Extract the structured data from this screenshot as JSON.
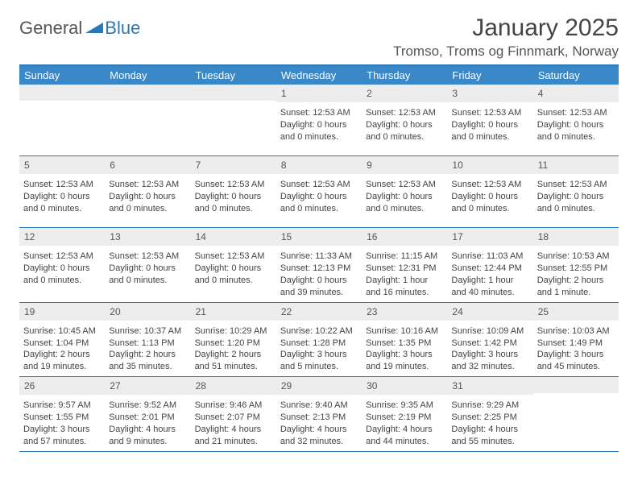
{
  "logo": {
    "general": "General",
    "blue": "Blue"
  },
  "title": "January 2025",
  "location": "Tromso, Troms og Finnmark, Norway",
  "colors": {
    "header_bg": "#3a88c8",
    "border": "#2a78b8",
    "daynum_bg": "#ededed",
    "text": "#444444"
  },
  "weekdays": [
    "Sunday",
    "Monday",
    "Tuesday",
    "Wednesday",
    "Thursday",
    "Friday",
    "Saturday"
  ],
  "weeks": [
    [
      {
        "n": "",
        "lines": []
      },
      {
        "n": "",
        "lines": []
      },
      {
        "n": "",
        "lines": []
      },
      {
        "n": "1",
        "lines": [
          "Sunset: 12:53 AM",
          "Daylight: 0 hours and 0 minutes."
        ]
      },
      {
        "n": "2",
        "lines": [
          "Sunset: 12:53 AM",
          "Daylight: 0 hours and 0 minutes."
        ]
      },
      {
        "n": "3",
        "lines": [
          "Sunset: 12:53 AM",
          "Daylight: 0 hours and 0 minutes."
        ]
      },
      {
        "n": "4",
        "lines": [
          "Sunset: 12:53 AM",
          "Daylight: 0 hours and 0 minutes."
        ]
      }
    ],
    [
      {
        "n": "5",
        "lines": [
          "Sunset: 12:53 AM",
          "Daylight: 0 hours and 0 minutes."
        ]
      },
      {
        "n": "6",
        "lines": [
          "Sunset: 12:53 AM",
          "Daylight: 0 hours and 0 minutes."
        ]
      },
      {
        "n": "7",
        "lines": [
          "Sunset: 12:53 AM",
          "Daylight: 0 hours and 0 minutes."
        ]
      },
      {
        "n": "8",
        "lines": [
          "Sunset: 12:53 AM",
          "Daylight: 0 hours and 0 minutes."
        ]
      },
      {
        "n": "9",
        "lines": [
          "Sunset: 12:53 AM",
          "Daylight: 0 hours and 0 minutes."
        ]
      },
      {
        "n": "10",
        "lines": [
          "Sunset: 12:53 AM",
          "Daylight: 0 hours and 0 minutes."
        ]
      },
      {
        "n": "11",
        "lines": [
          "Sunset: 12:53 AM",
          "Daylight: 0 hours and 0 minutes."
        ]
      }
    ],
    [
      {
        "n": "12",
        "lines": [
          "Sunset: 12:53 AM",
          "Daylight: 0 hours and 0 minutes."
        ]
      },
      {
        "n": "13",
        "lines": [
          "Sunset: 12:53 AM",
          "Daylight: 0 hours and 0 minutes."
        ]
      },
      {
        "n": "14",
        "lines": [
          "Sunset: 12:53 AM",
          "Daylight: 0 hours and 0 minutes."
        ]
      },
      {
        "n": "15",
        "lines": [
          "Sunrise: 11:33 AM",
          "Sunset: 12:13 PM",
          "Daylight: 0 hours and 39 minutes."
        ]
      },
      {
        "n": "16",
        "lines": [
          "Sunrise: 11:15 AM",
          "Sunset: 12:31 PM",
          "Daylight: 1 hour and 16 minutes."
        ]
      },
      {
        "n": "17",
        "lines": [
          "Sunrise: 11:03 AM",
          "Sunset: 12:44 PM",
          "Daylight: 1 hour and 40 minutes."
        ]
      },
      {
        "n": "18",
        "lines": [
          "Sunrise: 10:53 AM",
          "Sunset: 12:55 PM",
          "Daylight: 2 hours and 1 minute."
        ]
      }
    ],
    [
      {
        "n": "19",
        "lines": [
          "Sunrise: 10:45 AM",
          "Sunset: 1:04 PM",
          "Daylight: 2 hours and 19 minutes."
        ]
      },
      {
        "n": "20",
        "lines": [
          "Sunrise: 10:37 AM",
          "Sunset: 1:13 PM",
          "Daylight: 2 hours and 35 minutes."
        ]
      },
      {
        "n": "21",
        "lines": [
          "Sunrise: 10:29 AM",
          "Sunset: 1:20 PM",
          "Daylight: 2 hours and 51 minutes."
        ]
      },
      {
        "n": "22",
        "lines": [
          "Sunrise: 10:22 AM",
          "Sunset: 1:28 PM",
          "Daylight: 3 hours and 5 minutes."
        ]
      },
      {
        "n": "23",
        "lines": [
          "Sunrise: 10:16 AM",
          "Sunset: 1:35 PM",
          "Daylight: 3 hours and 19 minutes."
        ]
      },
      {
        "n": "24",
        "lines": [
          "Sunrise: 10:09 AM",
          "Sunset: 1:42 PM",
          "Daylight: 3 hours and 32 minutes."
        ]
      },
      {
        "n": "25",
        "lines": [
          "Sunrise: 10:03 AM",
          "Sunset: 1:49 PM",
          "Daylight: 3 hours and 45 minutes."
        ]
      }
    ],
    [
      {
        "n": "26",
        "lines": [
          "Sunrise: 9:57 AM",
          "Sunset: 1:55 PM",
          "Daylight: 3 hours and 57 minutes."
        ]
      },
      {
        "n": "27",
        "lines": [
          "Sunrise: 9:52 AM",
          "Sunset: 2:01 PM",
          "Daylight: 4 hours and 9 minutes."
        ]
      },
      {
        "n": "28",
        "lines": [
          "Sunrise: 9:46 AM",
          "Sunset: 2:07 PM",
          "Daylight: 4 hours and 21 minutes."
        ]
      },
      {
        "n": "29",
        "lines": [
          "Sunrise: 9:40 AM",
          "Sunset: 2:13 PM",
          "Daylight: 4 hours and 32 minutes."
        ]
      },
      {
        "n": "30",
        "lines": [
          "Sunrise: 9:35 AM",
          "Sunset: 2:19 PM",
          "Daylight: 4 hours and 44 minutes."
        ]
      },
      {
        "n": "31",
        "lines": [
          "Sunrise: 9:29 AM",
          "Sunset: 2:25 PM",
          "Daylight: 4 hours and 55 minutes."
        ]
      },
      {
        "n": "",
        "lines": []
      }
    ]
  ]
}
